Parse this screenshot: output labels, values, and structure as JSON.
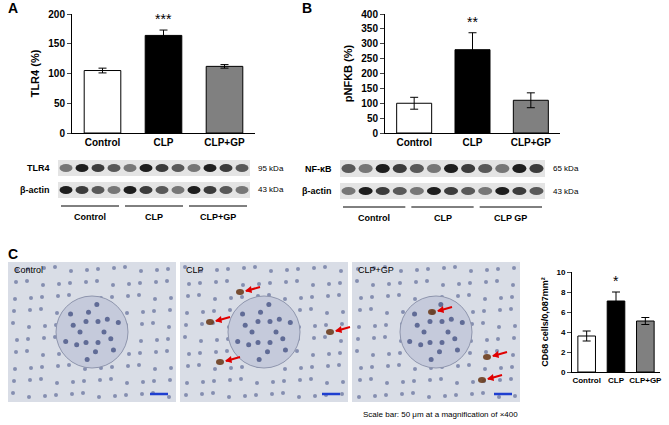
{
  "chart_data": [
    {
      "type": "bar",
      "y_label": "TLR4 (%)",
      "categories": [
        "Control",
        "CLP",
        "CLP+GP"
      ],
      "values": [
        105,
        164,
        112
      ],
      "errors": [
        4,
        9,
        3
      ],
      "colors": [
        "#ffffff",
        "#000000",
        "#808080"
      ],
      "ylim": [
        0,
        200
      ],
      "yticks": [
        0,
        50,
        100,
        150,
        200
      ],
      "grid": false,
      "annotations": [
        {
          "category": "CLP",
          "text": "***"
        }
      ]
    },
    {
      "type": "bar",
      "y_label": "pNFKB (%)",
      "categories": [
        "Control",
        "CLP",
        "CLP+GP"
      ],
      "values": [
        100,
        280,
        110
      ],
      "errors": [
        20,
        57,
        25
      ],
      "colors": [
        "#ffffff",
        "#000000",
        "#808080"
      ],
      "ylim": [
        0,
        400
      ],
      "yticks": [
        0,
        50,
        100,
        150,
        200,
        250,
        300,
        350,
        400
      ],
      "grid": false,
      "annotations": [
        {
          "category": "CLP",
          "text": "**"
        }
      ]
    },
    {
      "type": "bar",
      "y_label": "CD68 cells/0,087mm²",
      "categories": [
        "Control",
        "CLP",
        "CLP+GP"
      ],
      "values": [
        3.6,
        7.1,
        5.1
      ],
      "errors": [
        0.5,
        0.9,
        0.35
      ],
      "colors": [
        "#ffffff",
        "#000000",
        "#808080"
      ],
      "ylim": [
        0,
        10
      ],
      "yticks": [
        0,
        2,
        4,
        6,
        8,
        10
      ],
      "grid": false,
      "annotations": [
        {
          "category": "CLP",
          "text": "*"
        }
      ]
    }
  ],
  "panels": [
    "A",
    "B",
    "C"
  ],
  "blots": [
    {
      "rows": [
        {
          "label": "TLR4",
          "size": "95 kDa"
        },
        {
          "label": "β-actin",
          "size": "43 kDa"
        }
      ],
      "groups": [
        "Control",
        "CLP",
        "CLP+GP"
      ]
    },
    {
      "rows": [
        {
          "label": "NF-κB",
          "size": "65 kDa"
        },
        {
          "label": "β-actin",
          "size": "43 kDa"
        }
      ],
      "groups": [
        "Control",
        "CLP",
        "CLP GP"
      ]
    }
  ],
  "micrographs": {
    "labels": [
      "Control",
      "CLP",
      "CLP+GP"
    ],
    "note": "Scale bar: 50 μm at a magnification of ×400"
  }
}
